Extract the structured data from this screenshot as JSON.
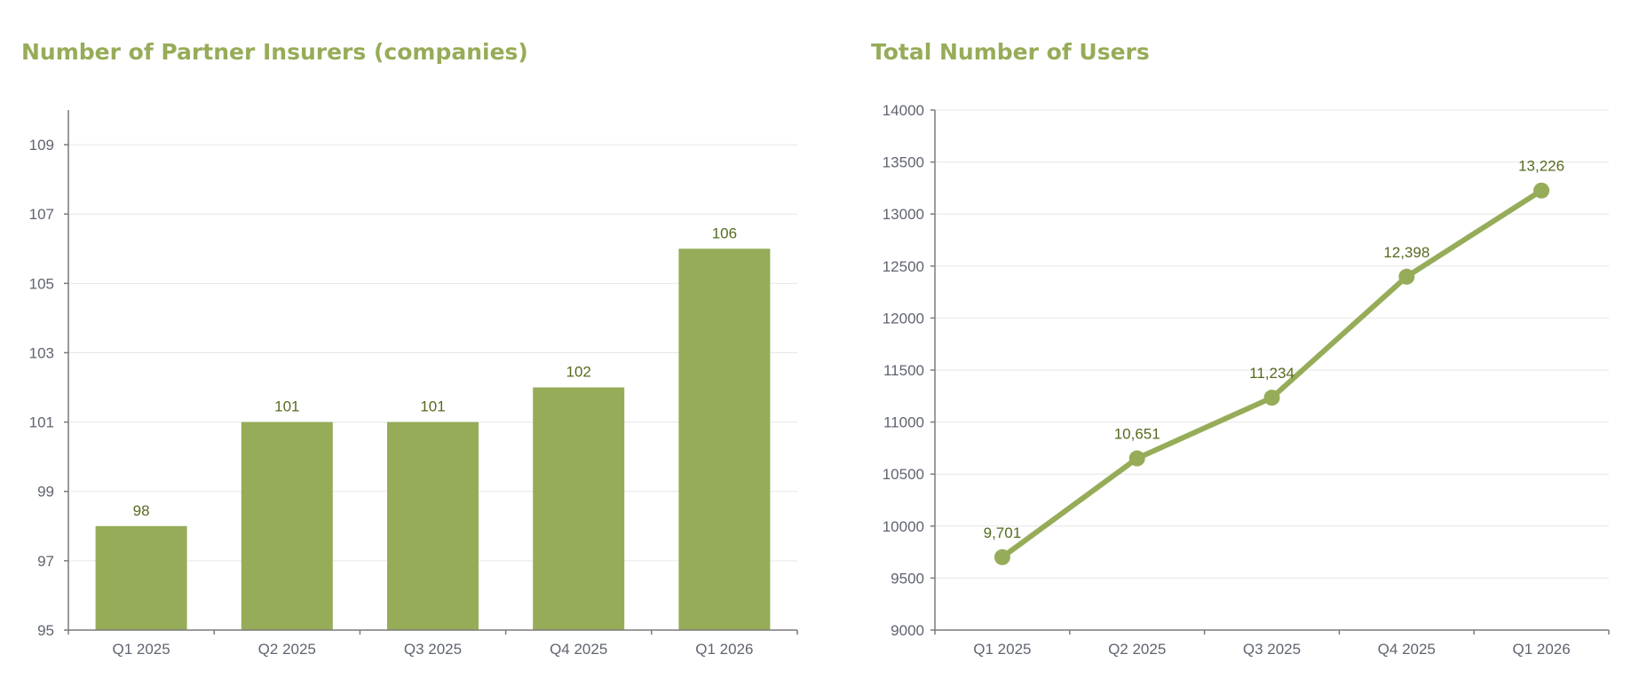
{
  "chart_data": [
    {
      "type": "bar",
      "title": "Number of Partner Insurers (companies)",
      "categories": [
        "Q1 2025",
        "Q2 2025",
        "Q3 2025",
        "Q4 2025",
        "Q1 2026"
      ],
      "values": [
        98,
        101,
        101,
        102,
        106
      ],
      "data_labels": [
        "98",
        "101",
        "101",
        "102",
        "106"
      ],
      "ylim": [
        95,
        110
      ],
      "yticks": [
        95,
        97,
        99,
        101,
        103,
        105,
        107,
        109
      ],
      "grid": true,
      "legend": "none",
      "color": "#96ac58"
    },
    {
      "type": "line",
      "title": "Total Number of Users",
      "categories": [
        "Q1 2025",
        "Q2 2025",
        "Q3 2025",
        "Q4 2025",
        "Q1 2026"
      ],
      "values": [
        9701,
        10651,
        11234,
        12398,
        13226
      ],
      "data_labels": [
        "9,701",
        "10,651",
        "11,234",
        "12,398",
        "13,226"
      ],
      "ylim": [
        9000,
        14000
      ],
      "yticks": [
        9000,
        9500,
        10000,
        10500,
        11000,
        11500,
        12000,
        12500,
        13000,
        13500,
        14000
      ],
      "grid": true,
      "legend": "none",
      "color": "#96ac58"
    }
  ]
}
